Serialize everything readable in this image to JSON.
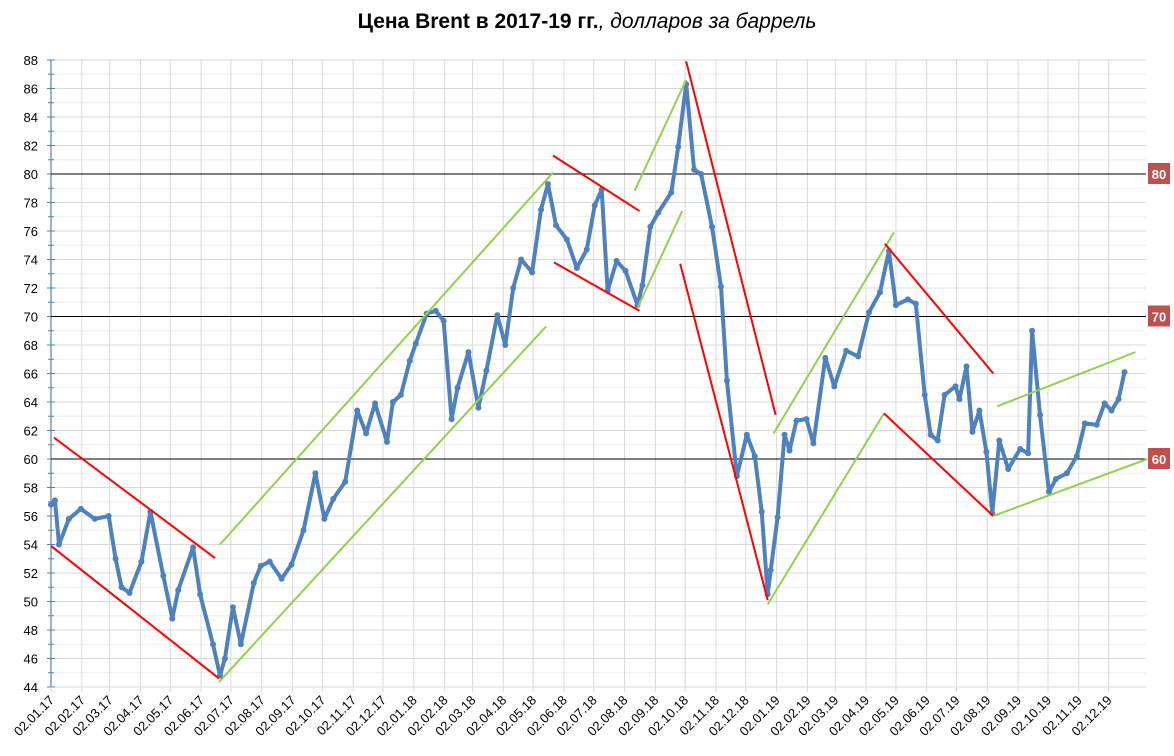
{
  "chart_data": {
    "type": "line",
    "title_bold": "Цена Brent в 2017-19 гг.",
    "title_italic": ", долларов за баррель",
    "xlabel": "",
    "ylabel": "",
    "ylim": [
      44,
      88
    ],
    "y_ticks": [
      44,
      46,
      48,
      50,
      52,
      54,
      56,
      58,
      60,
      62,
      64,
      66,
      68,
      70,
      72,
      74,
      76,
      78,
      80,
      82,
      84,
      86,
      88
    ],
    "x_start": "2017-01-02",
    "x_tick_labels": [
      "02.01.17",
      "02.02.17",
      "02.03.17",
      "02.04.17",
      "02.05.17",
      "02.06.17",
      "02.07.17",
      "02.08.17",
      "02.09.17",
      "02.10.17",
      "02.11.17",
      "02.12.17",
      "02.01.18",
      "02.02.18",
      "02.03.18",
      "02.04.18",
      "02.05.18",
      "02.06.18",
      "02.07.18",
      "02.08.18",
      "02.09.18",
      "02.10.18",
      "02.11.18",
      "02.12.18",
      "02.01.19",
      "02.02.19",
      "02.03.19",
      "02.04.19",
      "02.05.19",
      "02.06.19",
      "02.07.19",
      "02.08.19",
      "02.09.19",
      "02.10.19",
      "02.11.19",
      "02.12.19"
    ],
    "grid": true,
    "series": [
      {
        "name": "Brent",
        "color": "#4F81BD",
        "points": [
          [
            "2017-01-02",
            56.8
          ],
          [
            "2017-01-06",
            57.1
          ],
          [
            "2017-01-10",
            54.0
          ],
          [
            "2017-01-20",
            55.8
          ],
          [
            "2017-02-01",
            56.5
          ],
          [
            "2017-02-15",
            55.8
          ],
          [
            "2017-03-01",
            56.0
          ],
          [
            "2017-03-08",
            53.0
          ],
          [
            "2017-03-14",
            51.0
          ],
          [
            "2017-03-22",
            50.6
          ],
          [
            "2017-04-03",
            52.8
          ],
          [
            "2017-04-12",
            56.3
          ],
          [
            "2017-04-25",
            51.8
          ],
          [
            "2017-05-04",
            48.8
          ],
          [
            "2017-05-10",
            50.8
          ],
          [
            "2017-05-25",
            53.8
          ],
          [
            "2017-06-01",
            50.5
          ],
          [
            "2017-06-14",
            47.0
          ],
          [
            "2017-06-21",
            44.8
          ],
          [
            "2017-06-26",
            46.0
          ],
          [
            "2017-07-04",
            49.6
          ],
          [
            "2017-07-12",
            47.0
          ],
          [
            "2017-07-25",
            51.3
          ],
          [
            "2017-08-01",
            52.5
          ],
          [
            "2017-08-10",
            52.8
          ],
          [
            "2017-08-22",
            51.6
          ],
          [
            "2017-09-01",
            52.6
          ],
          [
            "2017-09-13",
            55.0
          ],
          [
            "2017-09-25",
            59.0
          ],
          [
            "2017-10-04",
            55.8
          ],
          [
            "2017-10-13",
            57.2
          ],
          [
            "2017-10-25",
            58.4
          ],
          [
            "2017-11-06",
            63.4
          ],
          [
            "2017-11-15",
            61.8
          ],
          [
            "2017-11-24",
            63.9
          ],
          [
            "2017-12-06",
            61.2
          ],
          [
            "2017-12-12",
            64.0
          ],
          [
            "2017-12-20",
            64.5
          ],
          [
            "2017-12-29",
            66.9
          ],
          [
            "2018-01-04",
            68.1
          ],
          [
            "2018-01-15",
            70.2
          ],
          [
            "2018-01-24",
            70.4
          ],
          [
            "2018-02-01",
            69.7
          ],
          [
            "2018-02-09",
            62.8
          ],
          [
            "2018-02-15",
            65.0
          ],
          [
            "2018-02-26",
            67.5
          ],
          [
            "2018-03-08",
            63.6
          ],
          [
            "2018-03-16",
            66.2
          ],
          [
            "2018-03-27",
            70.1
          ],
          [
            "2018-04-04",
            68.0
          ],
          [
            "2018-04-12",
            72.0
          ],
          [
            "2018-04-20",
            74.0
          ],
          [
            "2018-05-01",
            73.1
          ],
          [
            "2018-05-10",
            77.5
          ],
          [
            "2018-05-17",
            79.3
          ],
          [
            "2018-05-25",
            76.4
          ],
          [
            "2018-06-05",
            75.4
          ],
          [
            "2018-06-15",
            73.4
          ],
          [
            "2018-06-25",
            74.7
          ],
          [
            "2018-07-03",
            77.8
          ],
          [
            "2018-07-10",
            78.9
          ],
          [
            "2018-07-16",
            71.8
          ],
          [
            "2018-07-25",
            73.9
          ],
          [
            "2018-08-03",
            73.2
          ],
          [
            "2018-08-15",
            70.8
          ],
          [
            "2018-08-20",
            72.2
          ],
          [
            "2018-08-28",
            76.3
          ],
          [
            "2018-09-05",
            77.3
          ],
          [
            "2018-09-18",
            78.7
          ],
          [
            "2018-09-25",
            81.9
          ],
          [
            "2018-10-03",
            86.3
          ],
          [
            "2018-10-11",
            80.3
          ],
          [
            "2018-10-18",
            80.0
          ],
          [
            "2018-10-29",
            76.3
          ],
          [
            "2018-11-07",
            72.1
          ],
          [
            "2018-11-13",
            65.5
          ],
          [
            "2018-11-23",
            58.8
          ],
          [
            "2018-12-03",
            61.7
          ],
          [
            "2018-12-11",
            60.2
          ],
          [
            "2018-12-18",
            56.3
          ],
          [
            "2018-12-24",
            50.5
          ],
          [
            "2018-12-27",
            52.2
          ],
          [
            "2019-01-03",
            55.9
          ],
          [
            "2019-01-10",
            61.7
          ],
          [
            "2019-01-15",
            60.6
          ],
          [
            "2019-01-22",
            62.7
          ],
          [
            "2019-02-01",
            62.8
          ],
          [
            "2019-02-08",
            61.1
          ],
          [
            "2019-02-20",
            67.1
          ],
          [
            "2019-03-01",
            65.1
          ],
          [
            "2019-03-13",
            67.6
          ],
          [
            "2019-03-25",
            67.2
          ],
          [
            "2019-04-05",
            70.3
          ],
          [
            "2019-04-16",
            71.7
          ],
          [
            "2019-04-25",
            74.6
          ],
          [
            "2019-05-02",
            70.8
          ],
          [
            "2019-05-14",
            71.2
          ],
          [
            "2019-05-22",
            70.9
          ],
          [
            "2019-05-31",
            64.5
          ],
          [
            "2019-06-06",
            61.7
          ],
          [
            "2019-06-13",
            61.3
          ],
          [
            "2019-06-20",
            64.5
          ],
          [
            "2019-07-01",
            65.1
          ],
          [
            "2019-07-05",
            64.2
          ],
          [
            "2019-07-12",
            66.5
          ],
          [
            "2019-07-18",
            61.9
          ],
          [
            "2019-07-25",
            63.4
          ],
          [
            "2019-08-01",
            60.5
          ],
          [
            "2019-08-07",
            56.2
          ],
          [
            "2019-08-14",
            61.3
          ],
          [
            "2019-08-23",
            59.3
          ],
          [
            "2019-09-04",
            60.7
          ],
          [
            "2019-09-12",
            60.4
          ],
          [
            "2019-09-16",
            69.0
          ],
          [
            "2019-09-24",
            63.1
          ],
          [
            "2019-10-03",
            57.7
          ],
          [
            "2019-10-10",
            58.6
          ],
          [
            "2019-10-21",
            59.0
          ],
          [
            "2019-10-31",
            60.2
          ],
          [
            "2019-11-08",
            62.5
          ],
          [
            "2019-11-20",
            62.4
          ],
          [
            "2019-11-28",
            63.9
          ],
          [
            "2019-12-05",
            63.4
          ],
          [
            "2019-12-12",
            64.2
          ],
          [
            "2019-12-18",
            66.1
          ]
        ]
      }
    ],
    "trend_lines": [
      {
        "color": "#FF0000",
        "from": [
          "2017-01-05",
          61.5
        ],
        "to": [
          "2017-06-16",
          53.05
        ]
      },
      {
        "color": "#FF0000",
        "from": [
          "2017-01-02",
          53.9
        ],
        "to": [
          "2017-06-20",
          44.6
        ]
      },
      {
        "color": "#92D050",
        "from": [
          "2017-06-21",
          54.0
        ],
        "to": [
          "2018-05-22",
          80.1
        ]
      },
      {
        "color": "#92D050",
        "from": [
          "2017-06-20",
          44.35
        ],
        "to": [
          "2018-05-15",
          69.3
        ]
      },
      {
        "color": "#FF0000",
        "from": [
          "2018-05-22",
          81.3
        ],
        "to": [
          "2018-08-17",
          77.4
        ]
      },
      {
        "color": "#FF0000",
        "from": [
          "2018-05-23",
          73.8
        ],
        "to": [
          "2018-08-17",
          70.4
        ]
      },
      {
        "color": "#92D050",
        "from": [
          "2018-08-12",
          78.8
        ],
        "to": [
          "2018-10-03",
          86.6
        ]
      },
      {
        "color": "#92D050",
        "from": [
          "2018-08-15",
          70.6
        ],
        "to": [
          "2018-09-29",
          77.4
        ]
      },
      {
        "color": "#FF0000",
        "from": [
          "2018-10-03",
          87.9
        ],
        "to": [
          "2019-01-01",
          63.1
        ]
      },
      {
        "color": "#FF0000",
        "from": [
          "2018-09-27",
          73.7
        ],
        "to": [
          "2018-12-24",
          50.1
        ]
      },
      {
        "color": "#92D050",
        "from": [
          "2018-12-30",
          61.8
        ],
        "to": [
          "2019-04-30",
          75.9
        ]
      },
      {
        "color": "#92D050",
        "from": [
          "2018-12-24",
          49.8
        ],
        "to": [
          "2019-04-20",
          63.2
        ]
      },
      {
        "color": "#FF0000",
        "from": [
          "2019-04-21",
          75.1
        ],
        "to": [
          "2019-08-08",
          66.0
        ]
      },
      {
        "color": "#FF0000",
        "from": [
          "2019-04-20",
          63.2
        ],
        "to": [
          "2019-08-08",
          56.0
        ]
      },
      {
        "color": "#92D050",
        "from": [
          "2019-08-12",
          63.7
        ],
        "to": [
          "2019-12-29",
          67.5
        ]
      },
      {
        "color": "#92D050",
        "from": [
          "2019-08-08",
          56.0
        ],
        "to": [
          "2020-01-10",
          60.0
        ]
      }
    ],
    "reference_lines": [
      {
        "value": 80,
        "label": "80"
      },
      {
        "value": 70,
        "label": "70"
      },
      {
        "value": 60,
        "label": "60"
      }
    ],
    "reference_label_color": "#C0504D"
  }
}
